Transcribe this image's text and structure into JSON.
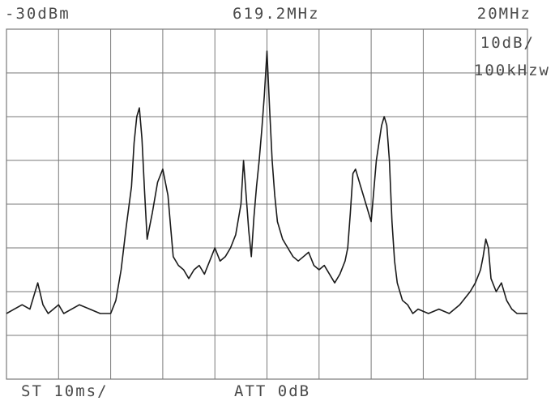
{
  "header": {
    "ref_level": "-30dBm",
    "center_freq": "619.2MHz",
    "span": "20MHz",
    "scale": "10dB/",
    "rbw": "100kHzw"
  },
  "footer": {
    "sweep_time": "ST 10ms/",
    "attenuation": "ATT  0dB"
  },
  "colors": {
    "trace": "#1a1a1a",
    "grid": "#7a7a7a",
    "text": "#4a4a4a"
  },
  "chart_data": {
    "type": "line",
    "title": "",
    "xlabel": "",
    "ylabel": "",
    "grid": true,
    "x_divisions": 10,
    "y_divisions": 8,
    "xlim": [
      609.2,
      629.2
    ],
    "ylim": [
      -110,
      -30
    ],
    "series": [
      {
        "x": [
          609.2,
          609.5,
          609.8,
          610.1,
          610.4,
          610.6,
          610.8,
          611.0,
          611.2,
          611.4,
          611.7,
          612.0,
          612.4,
          612.8,
          613.2,
          613.4,
          613.6,
          613.8,
          614.0,
          614.1,
          614.2,
          614.3,
          614.4,
          614.5,
          614.6,
          614.8,
          615.0,
          615.2,
          615.4,
          615.5,
          615.6,
          615.8,
          616.0,
          616.2,
          616.4,
          616.6,
          616.8,
          617.0,
          617.2,
          617.4,
          617.6,
          617.8,
          618.0,
          618.2,
          618.3,
          618.4,
          618.5,
          618.6,
          618.7,
          618.8,
          618.9,
          619.0,
          619.1,
          619.2,
          619.3,
          619.4,
          619.5,
          619.6,
          619.7,
          619.8,
          619.9,
          620.0,
          620.1,
          620.2,
          620.4,
          620.6,
          620.8,
          621.0,
          621.2,
          621.4,
          621.6,
          621.8,
          622.0,
          622.2,
          622.3,
          622.4,
          622.5,
          622.6,
          622.8,
          623.0,
          623.2,
          623.3,
          623.4,
          623.6,
          623.7,
          623.8,
          623.9,
          624.0,
          624.1,
          624.2,
          624.3,
          624.4,
          624.6,
          624.8,
          625.0,
          625.4,
          625.8,
          626.2,
          626.6,
          627.0,
          627.2,
          627.4,
          627.5,
          627.6,
          627.7,
          627.8,
          628.0,
          628.2,
          628.4,
          628.6,
          628.8,
          629.2
        ],
        "y": [
          -95,
          -94,
          -93,
          -94,
          -88,
          -93,
          -95,
          -94,
          -93,
          -95,
          -94,
          -93,
          -94,
          -95,
          -95,
          -92,
          -85,
          -75,
          -66,
          -56,
          -50,
          -48,
          -55,
          -67,
          -78,
          -72,
          -65,
          -62,
          -68,
          -75,
          -82,
          -84,
          -85,
          -87,
          -85,
          -84,
          -86,
          -83,
          -80,
          -83,
          -82,
          -80,
          -77,
          -70,
          -60,
          -68,
          -76,
          -82,
          -73,
          -66,
          -60,
          -53,
          -45,
          -35,
          -48,
          -60,
          -68,
          -74,
          -76,
          -78,
          -79,
          -80,
          -81,
          -82,
          -83,
          -82,
          -81,
          -84,
          -85,
          -84,
          -86,
          -88,
          -86,
          -83,
          -80,
          -72,
          -63,
          -62,
          -66,
          -70,
          -74,
          -67,
          -60,
          -52,
          -50,
          -52,
          -60,
          -74,
          -83,
          -88,
          -90,
          -92,
          -93,
          -95,
          -94,
          -95,
          -94,
          -95,
          -93,
          -90,
          -88,
          -85,
          -82,
          -78,
          -80,
          -87,
          -90,
          -88,
          -92,
          -94,
          -95,
          -95
        ]
      }
    ]
  }
}
